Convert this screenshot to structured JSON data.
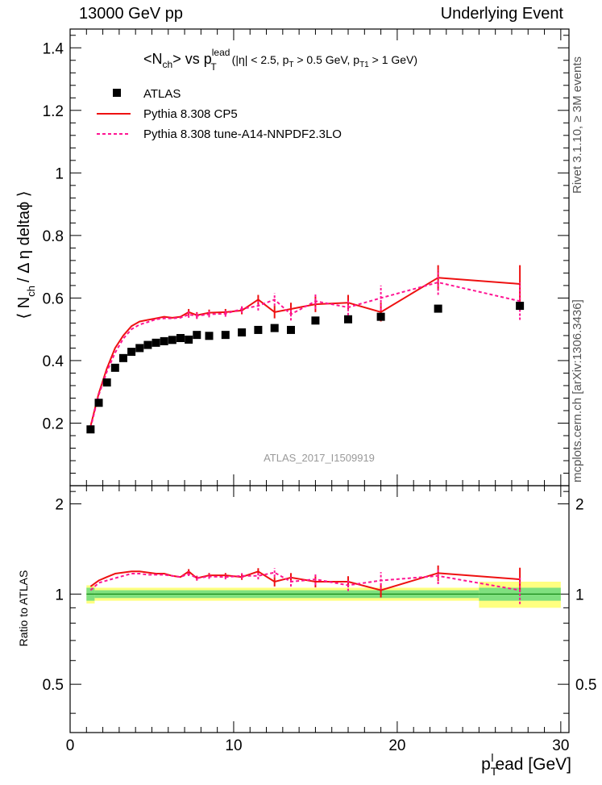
{
  "header": {
    "left": "13000 GeV pp",
    "right": "Underlying Event"
  },
  "side_labels": {
    "rivet": "Rivet 3.1.10, ≥ 3M events",
    "mcplots": "mcplots.cern.ch [arXiv:1306.3436]"
  },
  "colors": {
    "data": "#000000",
    "cp5": "#ee1111",
    "a14": "#ff1493",
    "band_inner": "#7fe07f",
    "band_outer": "#ffff80"
  },
  "chart_data": [
    {
      "type": "scatter",
      "panel": "main",
      "title": {
        "base": "<N",
        "base_sub": "ch",
        "mid": "> vs p",
        "mid_sup": "lead",
        "mid_sub": "T",
        "cut1": " (|η| < 2.5, p",
        "cut1_sub": "T",
        "cut2": " > 0.5 GeV, p",
        "cut2_sub": "T1",
        "cut3": " > 1 GeV)"
      },
      "ylabel": {
        "open": "⟨ N",
        "sub": "ch",
        "rest": "/ Δ η deltaϕ ⟩"
      },
      "analysis_label": "ATLAS_2017_I1509919",
      "xlim": [
        0,
        30.5
      ],
      "ylim": [
        0,
        1.46
      ],
      "yticks": [
        0.2,
        0.4,
        0.6,
        0.8,
        1,
        1.2,
        1.4
      ],
      "yticklabels": [
        "0.2",
        "0.4",
        "0.6",
        "0.8",
        "1",
        "1.2",
        "1.4"
      ],
      "legend": {
        "position": "top-left",
        "entries": [
          "ATLAS",
          "Pythia 8.308 CP5",
          "Pythia 8.308 tune-A14-NNPDF2.3LO"
        ]
      },
      "x": [
        1.25,
        1.75,
        2.25,
        2.75,
        3.25,
        3.75,
        4.25,
        4.75,
        5.25,
        5.75,
        6.25,
        6.75,
        7.25,
        7.75,
        8.5,
        9.5,
        10.5,
        11.5,
        12.5,
        13.5,
        15,
        17,
        19,
        22.5,
        27.5
      ],
      "series": [
        {
          "name": "ATLAS",
          "style": "markers",
          "values": [
            0.18,
            0.265,
            0.33,
            0.377,
            0.408,
            0.428,
            0.44,
            0.45,
            0.457,
            0.462,
            0.466,
            0.472,
            0.467,
            0.482,
            0.479,
            0.482,
            0.49,
            0.498,
            0.504,
            0.498,
            0.528,
            0.532,
            0.54,
            0.566,
            0.575
          ]
        },
        {
          "name": "Pythia 8.308 CP5",
          "style": "solid",
          "values": [
            0.19,
            0.295,
            0.375,
            0.44,
            0.48,
            0.51,
            0.525,
            0.53,
            0.535,
            0.54,
            0.537,
            0.54,
            0.555,
            0.545,
            0.553,
            0.555,
            0.56,
            0.595,
            0.555,
            0.565,
            0.58,
            0.585,
            0.555,
            0.665,
            0.645
          ],
          "errors": [
            0.005,
            0.005,
            0.005,
            0.005,
            0.005,
            0.005,
            0.005,
            0.005,
            0.005,
            0.006,
            0.006,
            0.006,
            0.01,
            0.01,
            0.01,
            0.01,
            0.012,
            0.015,
            0.02,
            0.02,
            0.025,
            0.025,
            0.03,
            0.04,
            0.06
          ]
        },
        {
          "name": "Pythia 8.308 tune-A14-NNPDF2.3LO",
          "style": "dashed",
          "values": [
            0.185,
            0.29,
            0.365,
            0.425,
            0.47,
            0.5,
            0.515,
            0.523,
            0.532,
            0.535,
            0.535,
            0.537,
            0.547,
            0.543,
            0.548,
            0.55,
            0.565,
            0.575,
            0.595,
            0.548,
            0.59,
            0.57,
            0.6,
            0.65,
            0.59
          ],
          "errors": [
            0.005,
            0.005,
            0.005,
            0.005,
            0.005,
            0.005,
            0.005,
            0.005,
            0.005,
            0.006,
            0.006,
            0.006,
            0.01,
            0.01,
            0.01,
            0.01,
            0.012,
            0.015,
            0.02,
            0.02,
            0.025,
            0.025,
            0.04,
            0.04,
            0.06
          ]
        }
      ]
    },
    {
      "type": "line",
      "panel": "ratio",
      "ylabel": "Ratio to ATLAS",
      "xlabel": {
        "main": "p",
        "sub": "T",
        "sup": "l",
        "rest": "ead [GeV]"
      },
      "xlim": [
        0,
        30.5
      ],
      "ylim": [
        0.345,
        2.3
      ],
      "xticks": [
        0,
        10,
        20,
        30
      ],
      "xticklabels": [
        "0",
        "10",
        "20",
        "30"
      ],
      "yticks": [
        0.5,
        1,
        2
      ],
      "yticklabels": [
        "0.5",
        "1",
        "2"
      ],
      "x": [
        1.25,
        1.75,
        2.25,
        2.75,
        3.25,
        3.75,
        4.25,
        4.75,
        5.25,
        5.75,
        6.25,
        6.75,
        7.25,
        7.75,
        8.5,
        9.5,
        10.5,
        11.5,
        12.5,
        13.5,
        15,
        17,
        19,
        22.5,
        27.5
      ],
      "band": {
        "bin_edges": [
          1,
          1.5,
          25,
          30
        ],
        "inner": [
          0.05,
          0.03,
          0.05
        ],
        "outer": [
          0.07,
          0.05,
          0.1
        ]
      },
      "series": [
        {
          "name": "Pythia 8.308 CP5",
          "style": "solid",
          "values": [
            1.06,
            1.11,
            1.14,
            1.17,
            1.18,
            1.19,
            1.19,
            1.18,
            1.17,
            1.17,
            1.15,
            1.14,
            1.19,
            1.13,
            1.155,
            1.155,
            1.14,
            1.19,
            1.1,
            1.135,
            1.1,
            1.1,
            1.03,
            1.175,
            1.12
          ]
        },
        {
          "name": "Pythia 8.308 tune-A14-NNPDF2.3LO",
          "style": "dashed",
          "values": [
            1.03,
            1.09,
            1.11,
            1.13,
            1.15,
            1.17,
            1.17,
            1.16,
            1.16,
            1.16,
            1.15,
            1.14,
            1.17,
            1.13,
            1.145,
            1.14,
            1.15,
            1.15,
            1.18,
            1.1,
            1.12,
            1.07,
            1.11,
            1.15,
            1.03
          ]
        }
      ]
    }
  ]
}
